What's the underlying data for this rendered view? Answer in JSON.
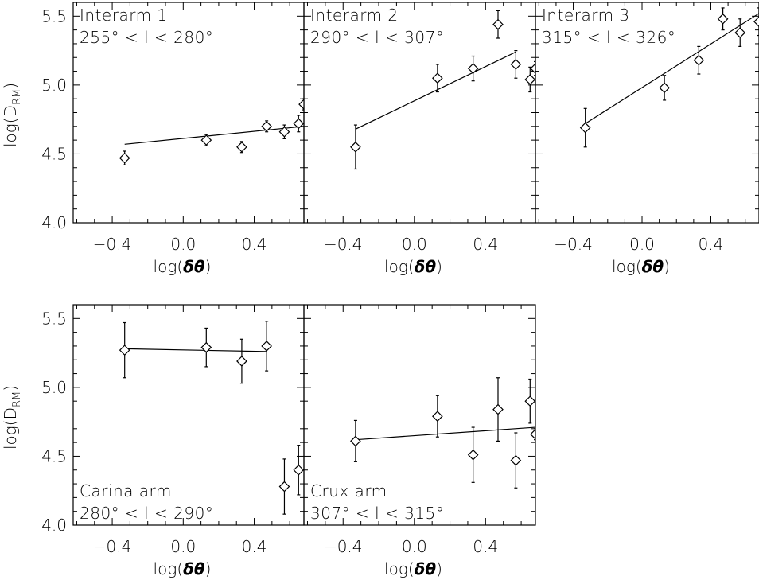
{
  "chart_data": [
    {
      "type": "scatter",
      "panel": "interarm-1",
      "label": "Interarm 1",
      "range_text": "255° < l < 280°",
      "xlabel": "log(δθ)",
      "ylabel": "log(D_RM)",
      "xlim": [
        -0.62,
        0.68
      ],
      "ylim": [
        4.0,
        5.6
      ],
      "xticks": [
        "-0.4",
        "0.0",
        "0.4"
      ],
      "yticks": [
        "4.0",
        "4.5",
        "5.0",
        "5.5"
      ],
      "points": [
        {
          "x": -0.33,
          "y": 4.47,
          "err": 0.05
        },
        {
          "x": 0.13,
          "y": 4.6,
          "err": 0.04
        },
        {
          "x": 0.33,
          "y": 4.55,
          "err": 0.04
        },
        {
          "x": 0.47,
          "y": 4.7,
          "err": 0.04
        },
        {
          "x": 0.57,
          "y": 4.66,
          "err": 0.05
        },
        {
          "x": 0.65,
          "y": 4.72,
          "err": 0.06
        },
        {
          "x": 0.68,
          "y": 4.86,
          "err": 0.04
        }
      ],
      "fit": [
        [
          -0.33,
          4.57
        ],
        [
          0.68,
          4.7
        ]
      ]
    },
    {
      "type": "scatter",
      "panel": "interarm-2",
      "label": "Interarm 2",
      "range_text": "290° < l < 307°",
      "xlabel": "log(δθ)",
      "xlim": [
        -0.62,
        0.68
      ],
      "ylim": [
        4.0,
        5.6
      ],
      "xticks": [
        "-0.4",
        "0.0",
        "0.4"
      ],
      "points": [
        {
          "x": -0.33,
          "y": 4.55,
          "err": 0.16
        },
        {
          "x": 0.13,
          "y": 5.05,
          "err": 0.1
        },
        {
          "x": 0.33,
          "y": 5.12,
          "err": 0.09
        },
        {
          "x": 0.47,
          "y": 5.44,
          "err": 0.1
        },
        {
          "x": 0.57,
          "y": 5.15,
          "err": 0.1
        },
        {
          "x": 0.65,
          "y": 5.04,
          "err": 0.09
        },
        {
          "x": 0.68,
          "y": 5.12,
          "err": 0.05
        }
      ],
      "fit": [
        [
          -0.33,
          4.68
        ],
        [
          0.57,
          5.24
        ]
      ]
    },
    {
      "type": "scatter",
      "panel": "interarm-3",
      "label": "Interarm 3",
      "range_text": "315° < l < 326°",
      "xlabel": "log(δθ)",
      "xlim": [
        -0.62,
        0.68
      ],
      "ylim": [
        4.0,
        5.6
      ],
      "xticks": [
        "-0.4",
        "0.0",
        "0.4"
      ],
      "points": [
        {
          "x": -0.33,
          "y": 4.69,
          "err": 0.14
        },
        {
          "x": 0.13,
          "y": 4.98,
          "err": 0.09
        },
        {
          "x": 0.33,
          "y": 5.18,
          "err": 0.1
        },
        {
          "x": 0.47,
          "y": 5.48,
          "err": 0.08
        },
        {
          "x": 0.57,
          "y": 5.38,
          "err": 0.1
        },
        {
          "x": 0.68,
          "y": 5.46,
          "err": 0.1
        }
      ],
      "fit": [
        [
          -0.33,
          4.72
        ],
        [
          0.68,
          5.52
        ]
      ]
    },
    {
      "type": "scatter",
      "panel": "carina-arm",
      "label": "Carina arm",
      "range_text": "280° < l < 290°",
      "xlabel": "log(δθ)",
      "ylabel": "log(D_RM)",
      "xlim": [
        -0.62,
        0.68
      ],
      "ylim": [
        4.0,
        5.6
      ],
      "xticks": [
        "-0.4",
        "0.0",
        "0.4"
      ],
      "yticks": [
        "4.0",
        "4.5",
        "5.0",
        "5.5"
      ],
      "points": [
        {
          "x": -0.33,
          "y": 5.27,
          "err": 0.2
        },
        {
          "x": 0.13,
          "y": 5.29,
          "err": 0.14
        },
        {
          "x": 0.33,
          "y": 5.19,
          "err": 0.16
        },
        {
          "x": 0.47,
          "y": 5.3,
          "err": 0.18
        },
        {
          "x": 0.57,
          "y": 4.28,
          "err": 0.2
        },
        {
          "x": 0.65,
          "y": 4.4,
          "err": 0.18
        }
      ],
      "fit": [
        [
          -0.33,
          5.28
        ],
        [
          0.47,
          5.26
        ]
      ]
    },
    {
      "type": "scatter",
      "panel": "crux-arm",
      "label": "Crux arm",
      "range_text": "307° < l < 315°",
      "xlabel": "log(δθ)",
      "xlim": [
        -0.62,
        0.68
      ],
      "ylim": [
        4.0,
        5.6
      ],
      "xticks": [
        "-0.4",
        "0.0",
        "0.4"
      ],
      "points": [
        {
          "x": -0.33,
          "y": 4.61,
          "err": 0.15
        },
        {
          "x": 0.13,
          "y": 4.79,
          "err": 0.15
        },
        {
          "x": 0.33,
          "y": 4.51,
          "err": 0.2
        },
        {
          "x": 0.47,
          "y": 4.84,
          "err": 0.23
        },
        {
          "x": 0.57,
          "y": 4.47,
          "err": 0.2
        },
        {
          "x": 0.65,
          "y": 4.9,
          "err": 0.16
        },
        {
          "x": 0.68,
          "y": 4.66,
          "err": 0.04
        }
      ],
      "fit": [
        [
          -0.33,
          4.62
        ],
        [
          0.68,
          4.71
        ]
      ]
    }
  ]
}
